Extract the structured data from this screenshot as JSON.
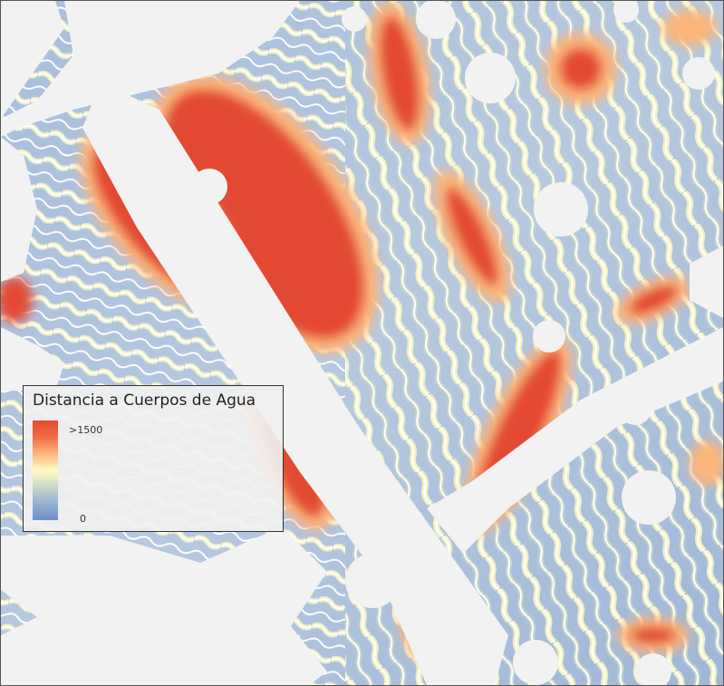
{
  "map": {
    "legend": {
      "title": "Distancia a Cuerpos de Agua",
      "max_label": ">1500",
      "min_label": "0",
      "ramp_colors": [
        "#e34a33",
        "#f26d45",
        "#fcb57a",
        "#fdfbc0",
        "#c9d8c4",
        "#98b1d3",
        "#6c8fc7"
      ]
    },
    "colors": {
      "mask": "#f2f2f2",
      "far": "#e34a33",
      "mid": "#fdfbc0",
      "near": "#7f9fcf",
      "stream": "#ffffff"
    }
  }
}
